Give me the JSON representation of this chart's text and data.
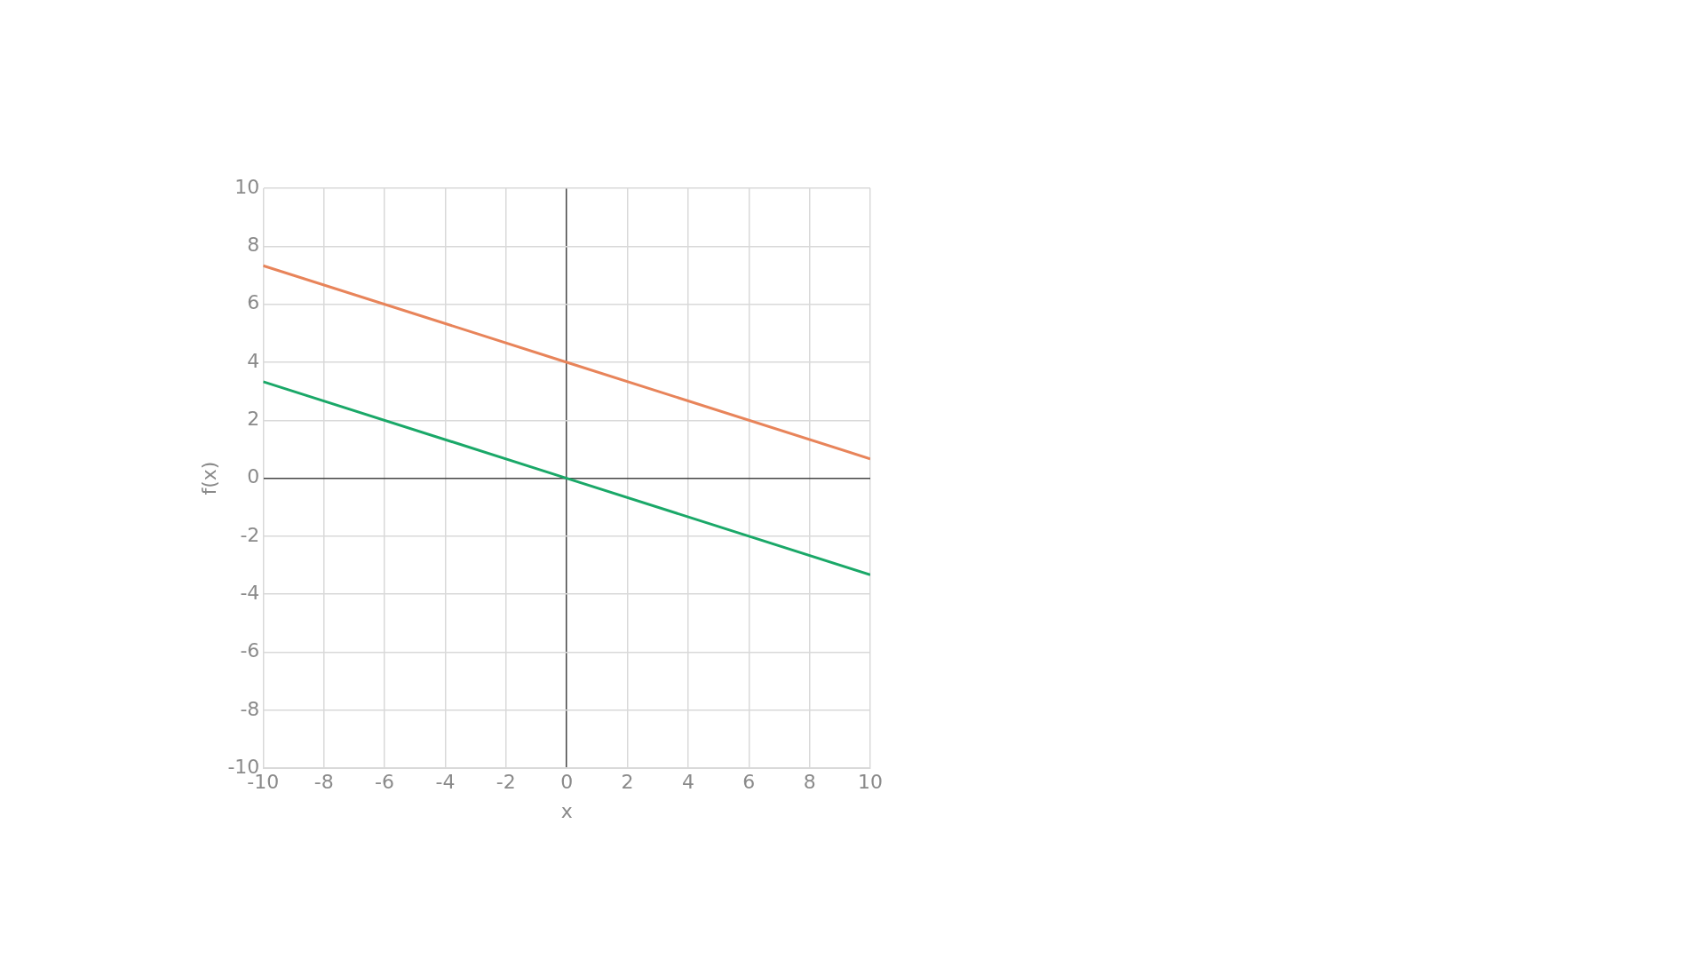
{
  "chart_data": {
    "type": "line",
    "xlabel": "x",
    "ylabel": "f(x)",
    "xlim": [
      -10,
      10
    ],
    "ylim": [
      -10,
      10
    ],
    "xticks": [
      -10,
      -8,
      -6,
      -4,
      -2,
      0,
      2,
      4,
      6,
      8,
      10
    ],
    "yticks": [
      -10,
      -8,
      -6,
      -4,
      -2,
      0,
      2,
      4,
      6,
      8,
      10
    ],
    "x": [
      -10,
      0,
      10
    ],
    "series": [
      {
        "color": "#e8845a",
        "values": [
          7.33,
          4,
          0.67
        ]
      },
      {
        "color": "#1aa868",
        "values": [
          3.33,
          0,
          -3.33
        ]
      }
    ],
    "grid": true,
    "legend": false,
    "marker": "none",
    "line_style": "solid"
  }
}
